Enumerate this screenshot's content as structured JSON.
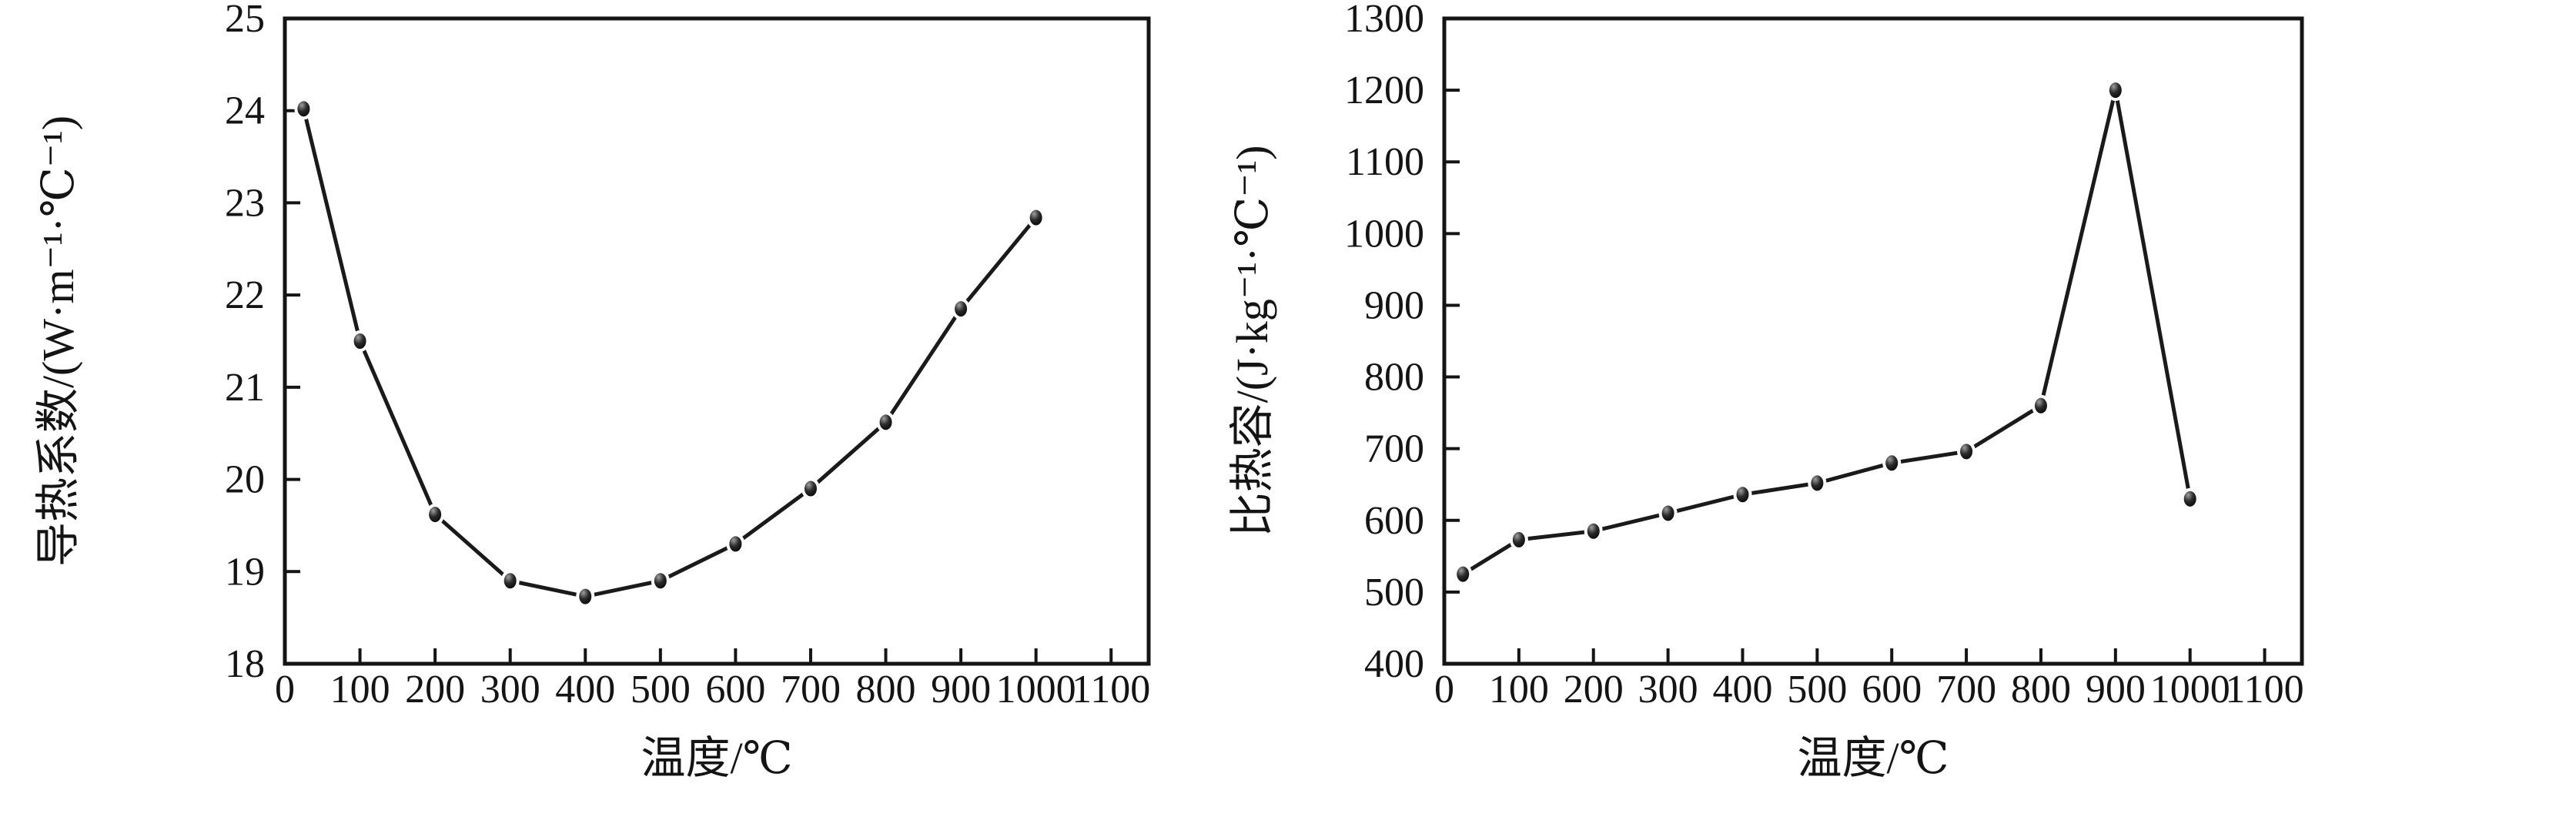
{
  "page": {
    "background_color": "#ffffff",
    "ink_color": "#141414"
  },
  "chart_data": [
    {
      "name": "thermal-conductivity-chart",
      "type": "line",
      "title": "",
      "xlabel": "温度/℃",
      "ylabel": "导热系数/(W·m⁻¹·℃⁻¹)",
      "x": [
        25,
        100,
        200,
        300,
        400,
        500,
        600,
        700,
        800,
        900,
        1000
      ],
      "y": [
        24.02,
        21.5,
        19.62,
        18.9,
        18.73,
        18.9,
        19.3,
        19.9,
        20.62,
        21.85,
        22.84
      ],
      "xlim": [
        0,
        1150
      ],
      "ylim": [
        18,
        25
      ],
      "xticks": {
        "values": [
          0,
          100,
          200,
          300,
          400,
          500,
          600,
          700,
          800,
          900,
          1000,
          1100
        ],
        "labels": [
          "0",
          "100",
          "200",
          "300",
          "400",
          "500",
          "600",
          "700",
          "800",
          "900",
          "1000",
          "1100"
        ]
      },
      "yticks": {
        "values": [
          18,
          19,
          20,
          21,
          22,
          23,
          24,
          25
        ],
        "labels": [
          "18",
          "19",
          "20",
          "21",
          "22",
          "23",
          "24",
          "25"
        ]
      },
      "grid": false,
      "legend": null,
      "line_color": "#1a1a1a",
      "marker": "filled-sphere",
      "marker_color": "#000000",
      "axis_color": "#141414"
    },
    {
      "name": "specific-heat-chart",
      "type": "line",
      "title": "",
      "xlabel": "温度/℃",
      "ylabel": "比热容/(J·kg⁻¹·℃⁻¹)",
      "x": [
        25,
        100,
        200,
        300,
        400,
        500,
        600,
        700,
        800,
        900,
        1000
      ],
      "y": [
        525,
        573,
        585,
        610,
        636,
        652,
        680,
        696,
        760,
        1200,
        630
      ],
      "xlim": [
        0,
        1150
      ],
      "ylim": [
        400,
        1300
      ],
      "xticks": {
        "values": [
          0,
          100,
          200,
          300,
          400,
          500,
          600,
          700,
          800,
          900,
          1000,
          1100
        ],
        "labels": [
          "0",
          "100",
          "200",
          "300",
          "400",
          "500",
          "600",
          "700",
          "800",
          "900",
          "1000",
          "1100"
        ]
      },
      "yticks": {
        "values": [
          400,
          500,
          600,
          700,
          800,
          900,
          1000,
          1100,
          1200,
          1300
        ],
        "labels": [
          "400",
          "500",
          "600",
          "700",
          "800",
          "900",
          "1000",
          "1100",
          "1200",
          "1300"
        ]
      },
      "grid": false,
      "legend": null,
      "line_color": "#1a1a1a",
      "marker": "filled-sphere",
      "marker_color": "#000000",
      "axis_color": "#141414"
    }
  ]
}
